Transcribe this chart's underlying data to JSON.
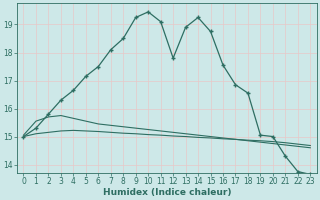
{
  "xlabel": "Humidex (Indice chaleur)",
  "bg_color": "#cde8e8",
  "grid_color": "#e8c8c8",
  "line_color": "#2e6e62",
  "xlim": [
    -0.5,
    23.5
  ],
  "ylim": [
    13.7,
    19.75
  ],
  "xticks": [
    0,
    1,
    2,
    3,
    4,
    5,
    6,
    7,
    8,
    9,
    10,
    11,
    12,
    13,
    14,
    15,
    16,
    17,
    18,
    19,
    20,
    21,
    22,
    23
  ],
  "yticks": [
    14,
    15,
    16,
    17,
    18,
    19
  ],
  "line1_x": [
    0,
    1,
    2,
    3,
    4,
    5,
    6,
    7,
    8,
    9,
    10,
    11,
    12,
    13,
    14,
    15,
    16,
    17,
    18,
    19,
    20,
    21,
    22,
    23
  ],
  "line1_y": [
    15.0,
    15.3,
    15.8,
    16.3,
    16.65,
    17.15,
    17.5,
    18.1,
    18.5,
    19.25,
    19.45,
    19.1,
    17.8,
    18.9,
    19.25,
    18.75,
    17.55,
    16.85,
    16.55,
    15.05,
    15.0,
    14.3,
    13.75,
    13.65
  ],
  "line2_x": [
    0,
    1,
    2,
    3,
    4,
    5,
    6,
    7,
    8,
    9,
    10,
    11,
    12,
    13,
    14,
    15,
    16,
    17,
    18,
    19,
    20,
    21,
    22,
    23
  ],
  "line2_y": [
    15.05,
    15.55,
    15.7,
    15.75,
    15.65,
    15.55,
    15.45,
    15.4,
    15.35,
    15.3,
    15.25,
    15.2,
    15.15,
    15.1,
    15.05,
    15.0,
    14.95,
    14.9,
    14.85,
    14.8,
    14.75,
    14.7,
    14.65,
    14.6
  ],
  "line3_x": [
    0,
    1,
    2,
    3,
    4,
    5,
    6,
    7,
    8,
    9,
    10,
    11,
    12,
    13,
    14,
    15,
    16,
    17,
    18,
    19,
    20,
    21,
    22,
    23
  ],
  "line3_y": [
    15.0,
    15.1,
    15.15,
    15.2,
    15.22,
    15.2,
    15.18,
    15.15,
    15.12,
    15.1,
    15.07,
    15.05,
    15.02,
    15.0,
    14.97,
    14.95,
    14.92,
    14.9,
    14.87,
    14.85,
    14.82,
    14.78,
    14.73,
    14.68
  ]
}
